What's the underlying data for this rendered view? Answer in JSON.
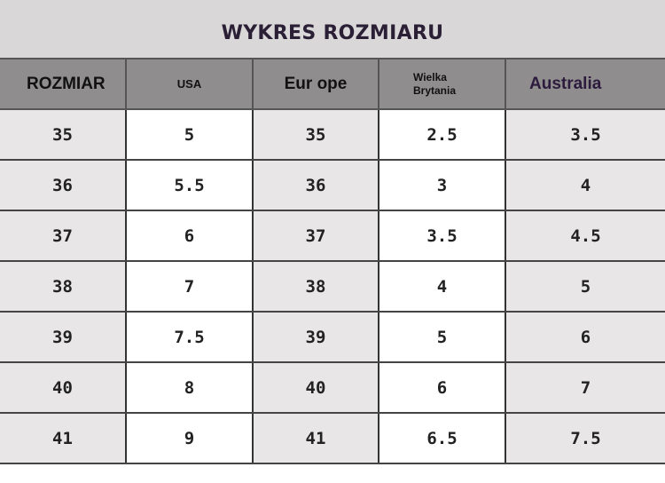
{
  "title": "WYKRES ROZMIARU",
  "headers": {
    "size": "ROZMIAR",
    "usa": "USA",
    "europe": "Eur ope",
    "uk_line1": "Wielka",
    "uk_line2": "Brytania",
    "australia": "Australia"
  },
  "rows": [
    {
      "size": "35",
      "usa": "5",
      "europe": "35",
      "uk": "2.5",
      "australia": "3.5"
    },
    {
      "size": "36",
      "usa": "5.5",
      "europe": "36",
      "uk": "3",
      "australia": "4"
    },
    {
      "size": "37",
      "usa": "6",
      "europe": "37",
      "uk": "3.5",
      "australia": "4.5"
    },
    {
      "size": "38",
      "usa": "7",
      "europe": "38",
      "uk": "4",
      "australia": "5"
    },
    {
      "size": "39",
      "usa": "7.5",
      "europe": "39",
      "uk": "5",
      "australia": "6"
    },
    {
      "size": "40",
      "usa": "8",
      "europe": "40",
      "uk": "6",
      "australia": "7"
    },
    {
      "size": "41",
      "usa": "9",
      "europe": "41",
      "uk": "6.5",
      "australia": "7.5"
    }
  ]
}
